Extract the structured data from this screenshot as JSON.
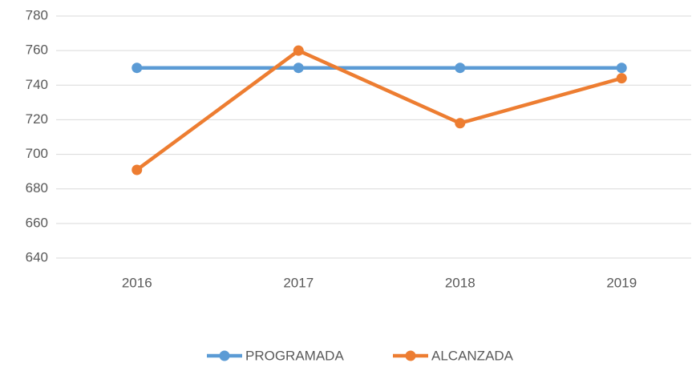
{
  "chart_data": {
    "type": "line",
    "categories": [
      "2016",
      "2017",
      "2018",
      "2019"
    ],
    "series": [
      {
        "name": "PROGRAMADA",
        "color": "#5b9bd5",
        "values": [
          750,
          750,
          750,
          750
        ]
      },
      {
        "name": "ALCANZADA",
        "color": "#ed7d31",
        "values": [
          691,
          760,
          718,
          744
        ]
      }
    ],
    "ylim": [
      640,
      780
    ],
    "yticks": [
      640,
      660,
      680,
      700,
      720,
      740,
      760,
      780
    ],
    "grid": true,
    "legend": "bottom"
  }
}
